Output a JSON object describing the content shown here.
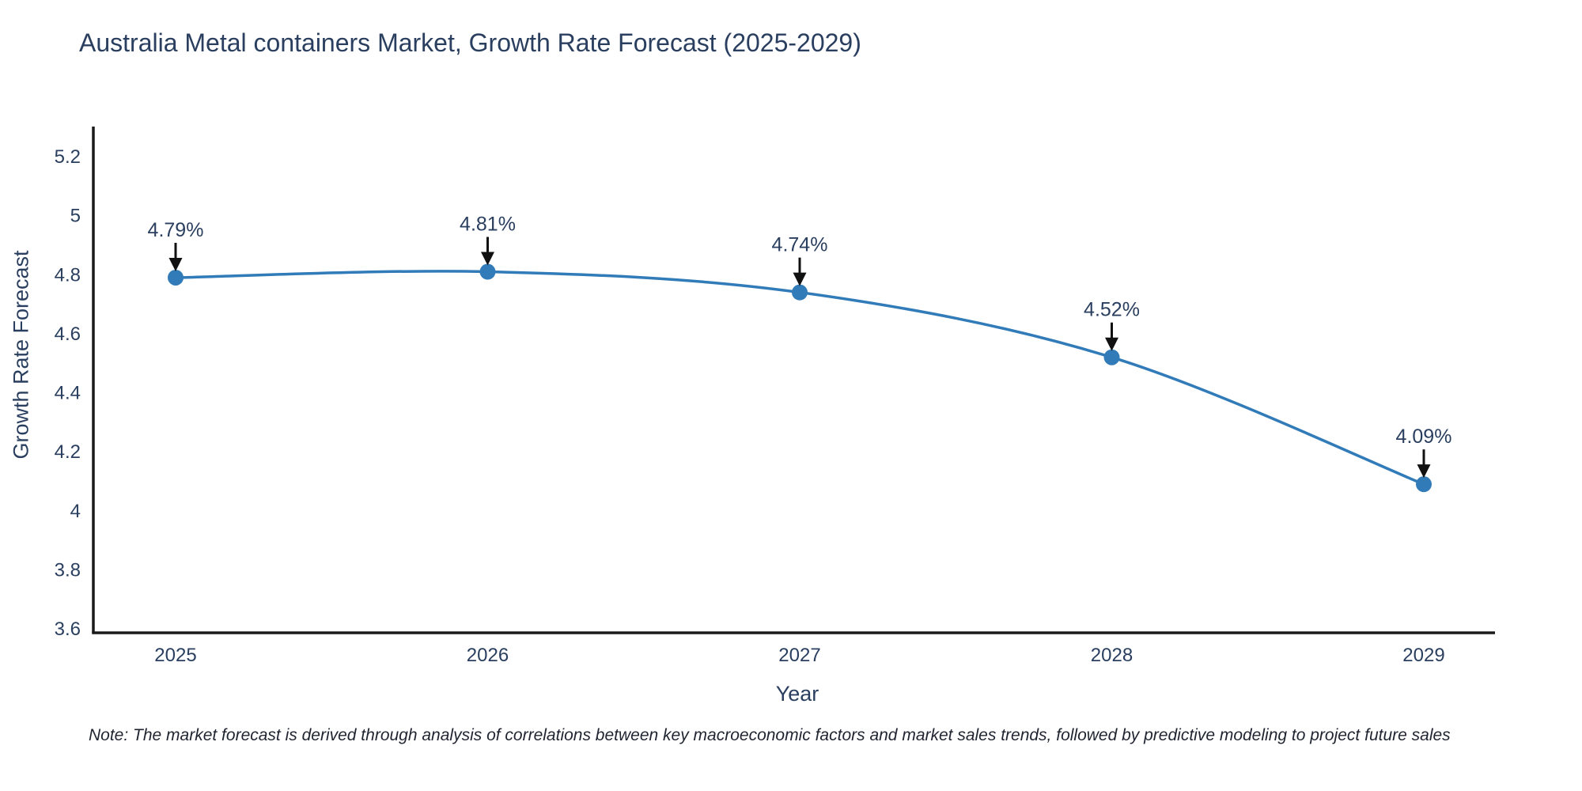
{
  "title": "Australia Metal containers Market, Growth Rate Forecast (2025-2029)",
  "note": "Note: The market forecast is derived through analysis of correlations between key macroeconomic factors and market sales trends, followed by predictive modeling to project future sales",
  "chart_data": {
    "type": "line",
    "line_shape": "spline",
    "title": "Australia Metal containers Market, Growth Rate Forecast (2025-2029)",
    "xlabel": "Year",
    "ylabel": "Growth Rate Forecast",
    "categories": [
      "2025",
      "2026",
      "2027",
      "2028",
      "2029"
    ],
    "x": [
      2025,
      2026,
      2027,
      2028,
      2029
    ],
    "values": [
      4.79,
      4.81,
      4.74,
      4.52,
      4.09
    ],
    "point_labels": [
      "4.79%",
      "4.81%",
      "4.74%",
      "4.52%",
      "4.09%"
    ],
    "ylim": [
      3.6,
      5.2
    ],
    "xlim": [
      2025,
      2029
    ],
    "yticks": [
      "3.6",
      "3.8",
      "4",
      "4.2",
      "4.4",
      "4.6",
      "4.8",
      "5",
      "5.2"
    ],
    "ytick_values": [
      3.6,
      3.8,
      4.0,
      4.2,
      4.4,
      4.6,
      4.8,
      5.0,
      5.2
    ],
    "grid": false,
    "legend_position": "none",
    "line_color": "#317bb9",
    "marker_color": "#317bb9",
    "axis_line_color": "#1a1a1a",
    "tick_label_color": "#2a3f5f",
    "annotation_text_color": "#2a3f5f",
    "annotation_arrow_color": "#111111",
    "background_color": "#ffffff"
  }
}
